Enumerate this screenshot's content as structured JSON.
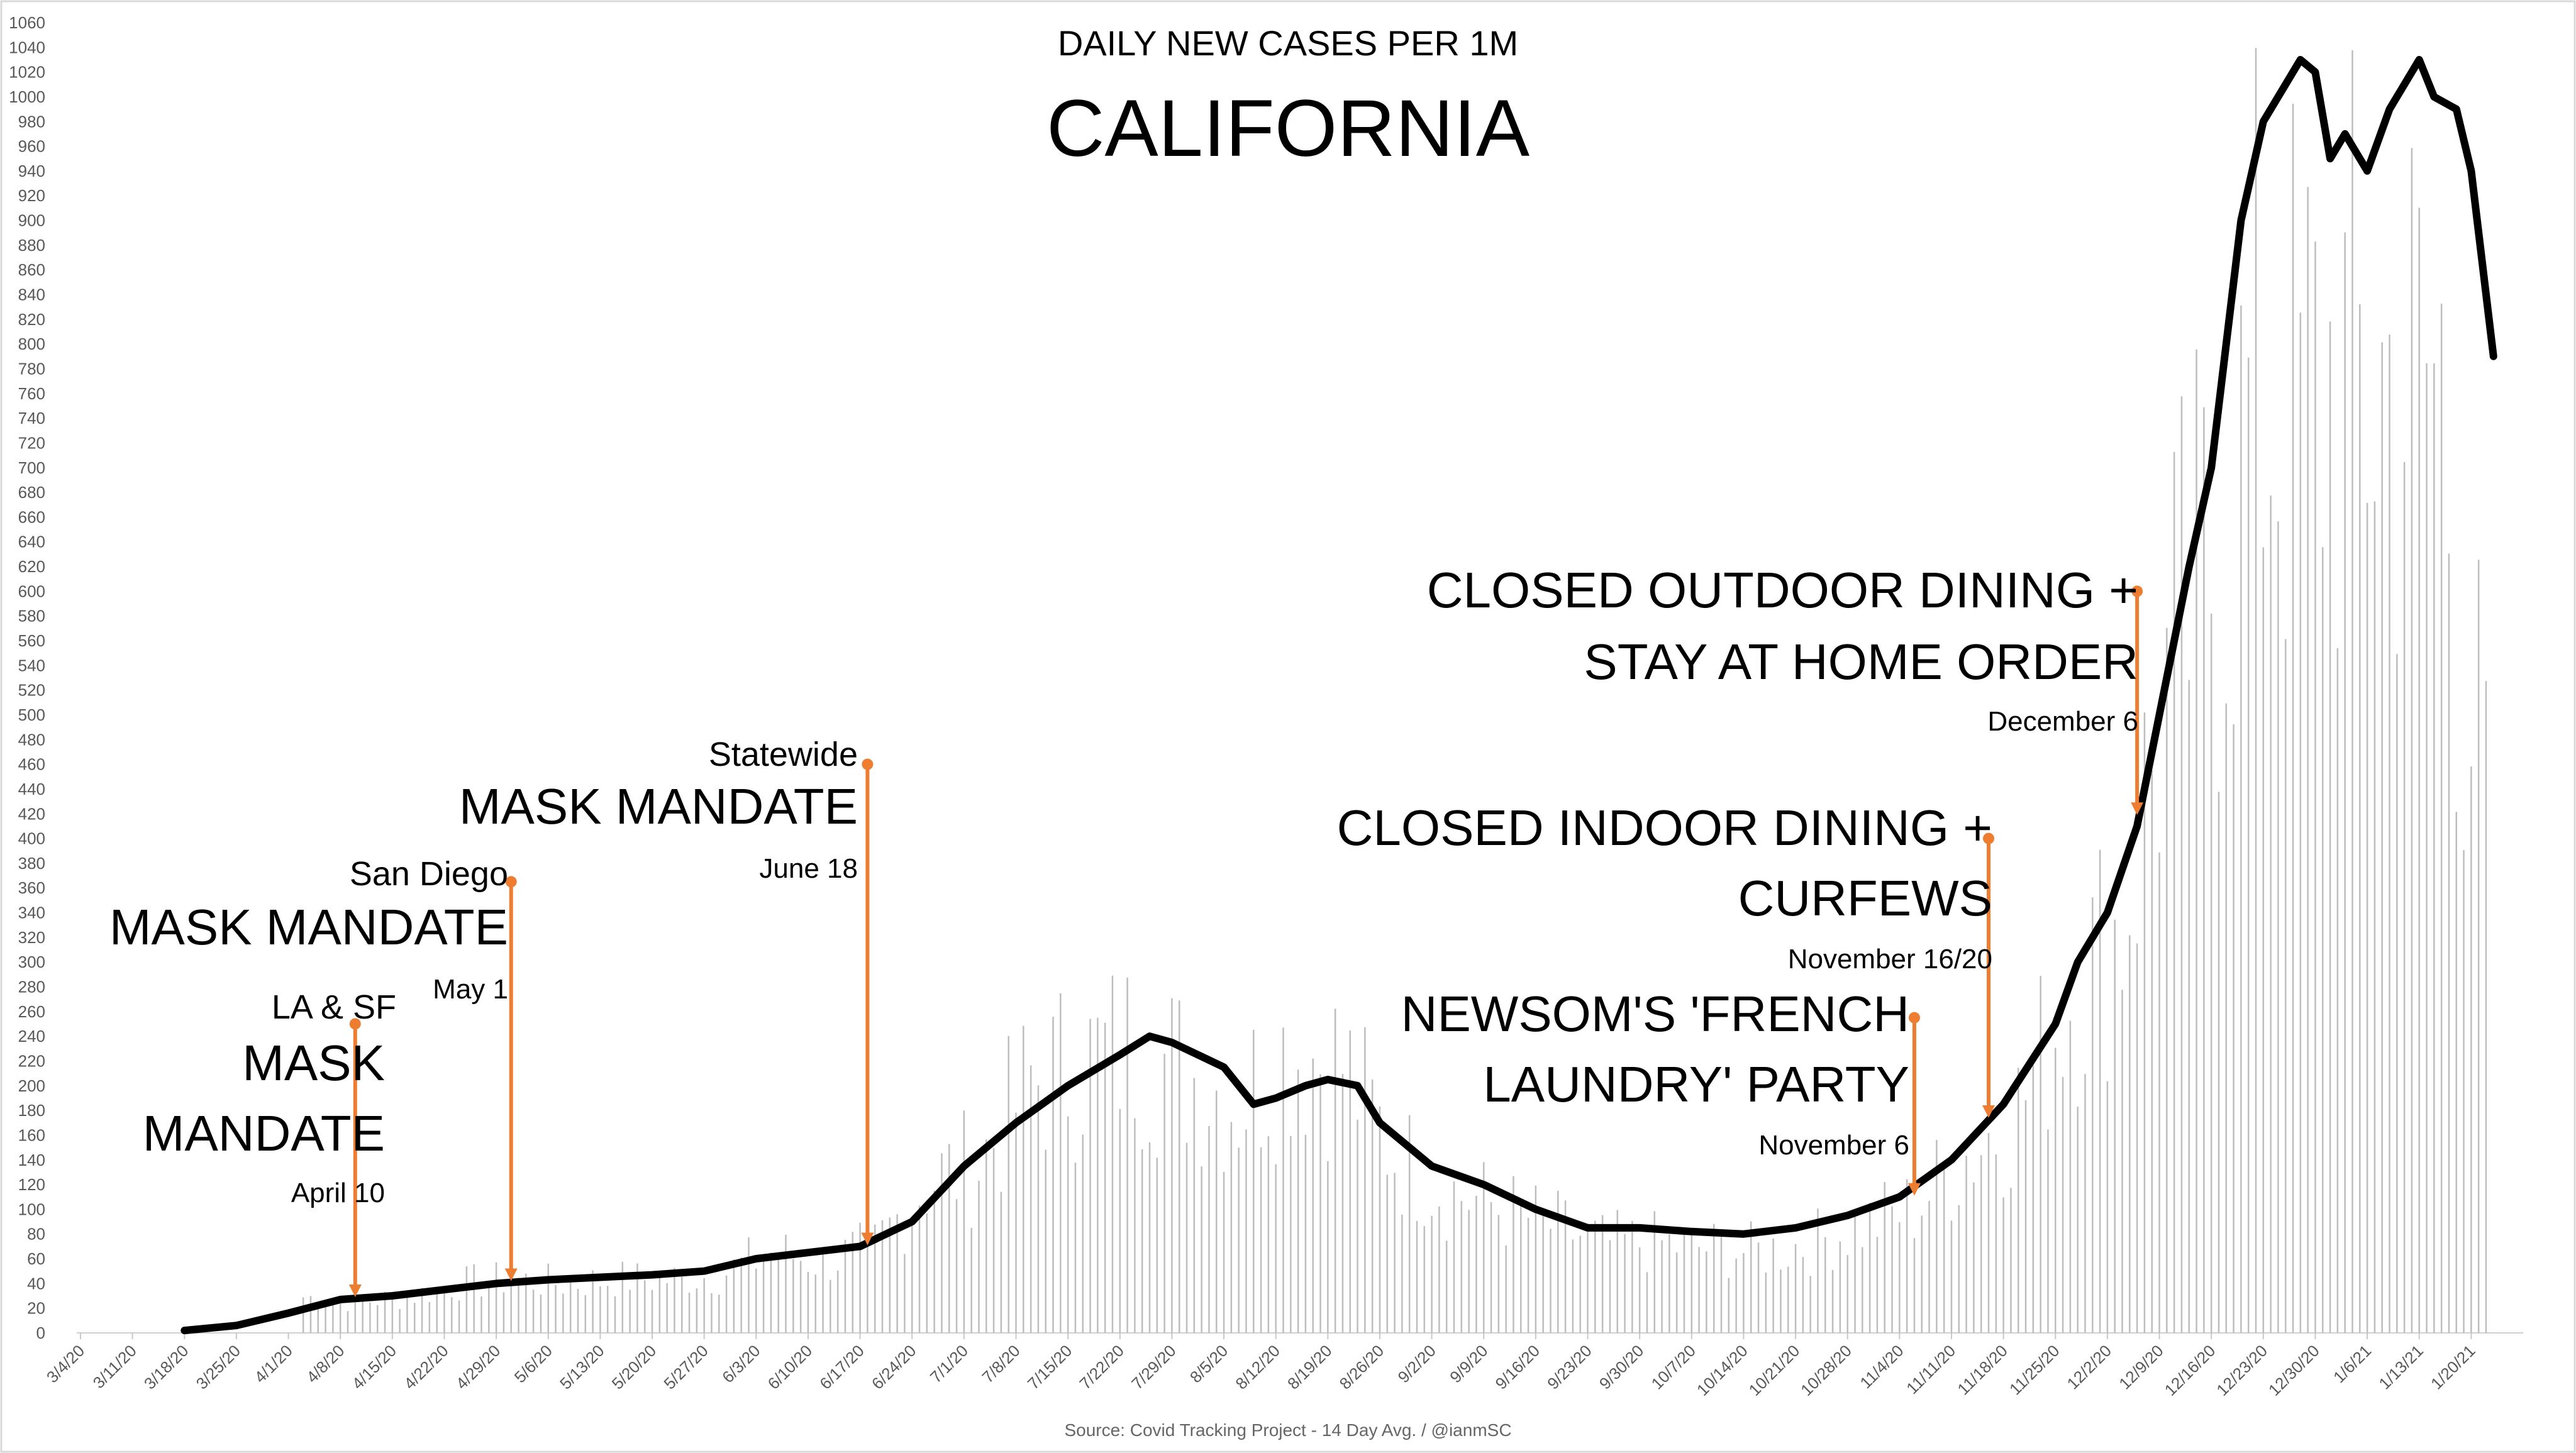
{
  "chart_data": {
    "type": "line",
    "subtitle": "DAILY NEW CASES PER 1M",
    "title": "CALIFORNIA",
    "source": "Source: Covid Tracking Project - 14 Day Avg. / @ianmSC",
    "ylim": [
      0,
      1060
    ],
    "ytick_step": 20,
    "x_tick_labels": [
      "3/4/20",
      "3/11/20",
      "3/18/20",
      "3/25/20",
      "4/1/20",
      "4/8/20",
      "4/15/20",
      "4/22/20",
      "4/29/20",
      "5/6/20",
      "5/13/20",
      "5/20/20",
      "5/27/20",
      "6/3/20",
      "6/10/20",
      "6/17/20",
      "6/24/20",
      "7/1/20",
      "7/8/20",
      "7/15/20",
      "7/22/20",
      "7/29/20",
      "8/5/20",
      "8/12/20",
      "8/19/20",
      "8/26/20",
      "9/2/20",
      "9/9/20",
      "9/16/20",
      "9/23/20",
      "9/30/20",
      "10/7/20",
      "10/14/20",
      "10/21/20",
      "10/28/20",
      "11/4/20",
      "11/11/20",
      "11/18/20",
      "11/25/20",
      "12/2/20",
      "12/9/20",
      "12/16/20",
      "12/23/20",
      "12/30/20",
      "1/6/21",
      "1/13/21",
      "1/20/21"
    ],
    "grid": "none",
    "series": [
      {
        "style": "line",
        "color": "#000000",
        "points": [
          [
            "3/18/20",
            2
          ],
          [
            "3/25/20",
            6
          ],
          [
            "4/1/20",
            16
          ],
          [
            "4/8/20",
            27
          ],
          [
            "4/15/20",
            30
          ],
          [
            "4/22/20",
            35
          ],
          [
            "4/29/20",
            40
          ],
          [
            "5/6/20",
            43
          ],
          [
            "5/13/20",
            45
          ],
          [
            "5/20/20",
            47
          ],
          [
            "5/27/20",
            50
          ],
          [
            "6/3/20",
            60
          ],
          [
            "6/10/20",
            65
          ],
          [
            "6/17/20",
            70
          ],
          [
            "6/24/20",
            90
          ],
          [
            "7/1/20",
            135
          ],
          [
            "7/8/20",
            170
          ],
          [
            "7/15/20",
            200
          ],
          [
            "7/22/20",
            225
          ],
          [
            "7/26/20",
            240
          ],
          [
            "7/29/20",
            235
          ],
          [
            "8/5/20",
            215
          ],
          [
            "8/9/20",
            185
          ],
          [
            "8/12/20",
            190
          ],
          [
            "8/16/20",
            200
          ],
          [
            "8/19/20",
            205
          ],
          [
            "8/23/20",
            200
          ],
          [
            "8/26/20",
            170
          ],
          [
            "9/2/20",
            135
          ],
          [
            "9/9/20",
            120
          ],
          [
            "9/16/20",
            100
          ],
          [
            "9/23/20",
            85
          ],
          [
            "9/30/20",
            85
          ],
          [
            "10/7/20",
            82
          ],
          [
            "10/14/20",
            80
          ],
          [
            "10/21/20",
            85
          ],
          [
            "10/28/20",
            95
          ],
          [
            "11/4/20",
            110
          ],
          [
            "11/11/20",
            140
          ],
          [
            "11/18/20",
            185
          ],
          [
            "11/25/20",
            250
          ],
          [
            "11/28/20",
            300
          ],
          [
            "12/2/20",
            340
          ],
          [
            "12/6/20",
            410
          ],
          [
            "12/9/20",
            500
          ],
          [
            "12/13/20",
            620
          ],
          [
            "12/16/20",
            700
          ],
          [
            "12/20/20",
            900
          ],
          [
            "12/23/20",
            980
          ],
          [
            "12/26/20",
            1010
          ],
          [
            "12/28/20",
            1030
          ],
          [
            "12/30/20",
            1020
          ],
          [
            "1/1/21",
            950
          ],
          [
            "1/3/21",
            970
          ],
          [
            "1/6/21",
            940
          ],
          [
            "1/9/21",
            990
          ],
          [
            "1/13/21",
            1030
          ],
          [
            "1/15/21",
            1000
          ],
          [
            "1/18/21",
            990
          ],
          [
            "1/20/21",
            940
          ],
          [
            "1/23/21",
            790
          ]
        ]
      },
      {
        "style": "daily-bars",
        "color": "#bdbdbd",
        "points": [
          [
            "4/3/20",
            40
          ],
          [
            "4/10/20",
            35
          ],
          [
            "4/17/20",
            40
          ],
          [
            "4/24/20",
            55
          ],
          [
            "5/1/20",
            60
          ],
          [
            "5/8/20",
            55
          ],
          [
            "5/15/20",
            60
          ],
          [
            "5/22/20",
            60
          ],
          [
            "5/29/20",
            65
          ],
          [
            "6/5/20",
            90
          ],
          [
            "6/12/20",
            80
          ],
          [
            "6/19/20",
            95
          ],
          [
            "6/26/20",
            170
          ],
          [
            "7/3/20",
            190
          ],
          [
            "7/10/20",
            280
          ],
          [
            "7/17/20",
            300
          ],
          [
            "7/24/20",
            320
          ],
          [
            "7/31/20",
            290
          ],
          [
            "8/7/20",
            260
          ],
          [
            "8/14/20",
            320
          ],
          [
            "8/21/20",
            300
          ],
          [
            "8/28/20",
            200
          ],
          [
            "9/4/20",
            160
          ],
          [
            "9/11/20",
            140
          ],
          [
            "9/18/20",
            120
          ],
          [
            "9/25/20",
            100
          ],
          [
            "10/2/20",
            100
          ],
          [
            "10/9/20",
            95
          ],
          [
            "10/16/20",
            90
          ],
          [
            "10/23/20",
            100
          ],
          [
            "10/30/20",
            120
          ],
          [
            "11/6/20",
            140
          ],
          [
            "11/13/20",
            200
          ],
          [
            "11/20/20",
            250
          ],
          [
            "11/27/20",
            380
          ],
          [
            "12/4/20",
            460
          ],
          [
            "12/11/20",
            760
          ],
          [
            "12/18/20",
            900
          ],
          [
            "12/22/20",
            1060
          ],
          [
            "12/27/20",
            1040
          ],
          [
            "1/1/21",
            1060
          ],
          [
            "1/5/21",
            1060
          ],
          [
            "1/8/21",
            1060
          ],
          [
            "1/12/21",
            1060
          ],
          [
            "1/16/21",
            1060
          ],
          [
            "1/19/21",
            740
          ],
          [
            "1/22/21",
            610
          ]
        ]
      }
    ],
    "annotations": [
      {
        "id": "la-sf",
        "date": "4/10/20",
        "top": 250,
        "bottom": 30,
        "pre": "LA & SF",
        "main": [
          "MASK",
          "MANDATE"
        ],
        "date_label": "April 10"
      },
      {
        "id": "san-diego",
        "date": "5/1/20",
        "top": 365,
        "bottom": 43,
        "pre": "San Diego",
        "main": [
          "MASK MANDATE"
        ],
        "date_label": "May 1"
      },
      {
        "id": "statewide",
        "date": "6/18/20",
        "top": 460,
        "bottom": 72,
        "pre": "Statewide",
        "main": [
          "MASK MANDATE"
        ],
        "date_label": "June 18"
      },
      {
        "id": "french-laundry",
        "date": "11/6/20",
        "top": 255,
        "bottom": 112,
        "pre": "",
        "main": [
          "NEWSOM'S 'FRENCH",
          "LAUNDRY' PARTY"
        ],
        "date_label": "November 6"
      },
      {
        "id": "indoor-dining",
        "date": "11/16/20",
        "top": 400,
        "bottom": 175,
        "pre": "",
        "main": [
          "CLOSED INDOOR DINING +",
          "CURFEWS"
        ],
        "date_label": "November 16/20"
      },
      {
        "id": "outdoor-dining",
        "date": "12/6/20",
        "top": 600,
        "bottom": 420,
        "pre": "",
        "main": [
          "CLOSED OUTDOOR DINING +",
          "STAY AT HOME ORDER"
        ],
        "date_label": "December 6"
      }
    ]
  }
}
